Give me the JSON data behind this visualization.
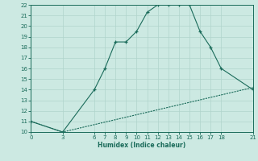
{
  "xlabel": "Humidex (Indice chaleur)",
  "background_color": "#cce9e2",
  "line_color": "#1a6b5a",
  "grid_color": "#b0d4cc",
  "xlim": [
    0,
    21
  ],
  "ylim": [
    10,
    22
  ],
  "xticks": [
    0,
    3,
    6,
    7,
    8,
    9,
    10,
    11,
    12,
    13,
    14,
    15,
    16,
    17,
    18,
    21
  ],
  "yticks": [
    10,
    11,
    12,
    13,
    14,
    15,
    16,
    17,
    18,
    19,
    20,
    21,
    22
  ],
  "line1_x": [
    0,
    3,
    6,
    7,
    8,
    9,
    10,
    11,
    12,
    13,
    14,
    15,
    16,
    17,
    18,
    21
  ],
  "line1_y": [
    11,
    10,
    14,
    16,
    18.5,
    18.5,
    19.5,
    21.3,
    22,
    22,
    22,
    22,
    19.5,
    18,
    16,
    14
  ],
  "line2_x": [
    0,
    3,
    21
  ],
  "line2_y": [
    11,
    10,
    14.2
  ]
}
